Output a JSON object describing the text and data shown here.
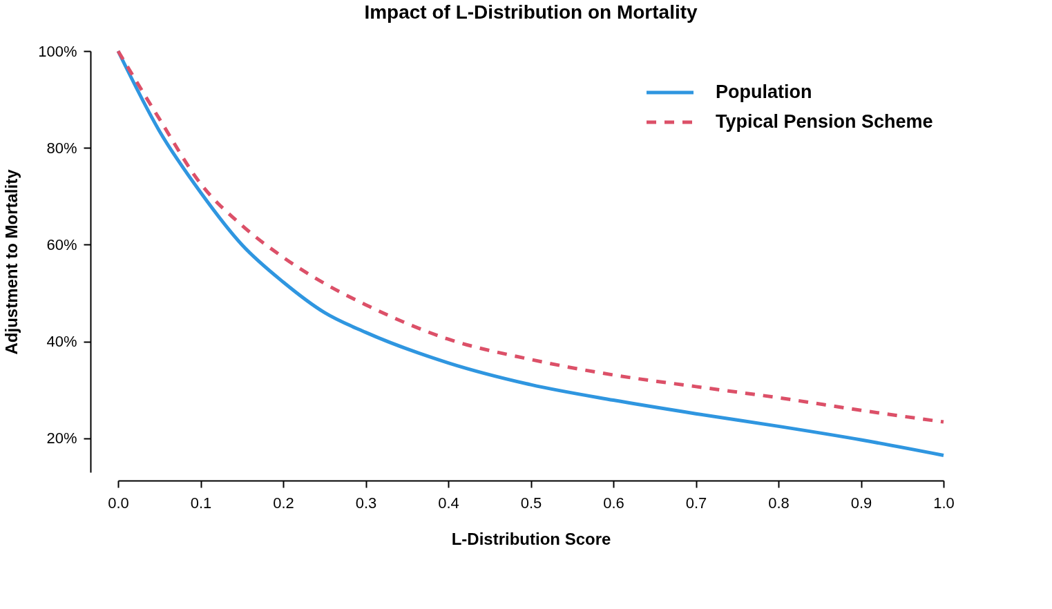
{
  "chart_data": {
    "type": "line",
    "title": "Impact of L-Distribution on Mortality",
    "xlabel": "L-Distribution Score",
    "ylabel": "Adjustment to Mortality",
    "x": [
      0,
      0.05,
      0.1,
      0.15,
      0.2,
      0.25,
      0.3,
      0.4,
      0.5,
      0.6,
      0.7,
      0.8,
      0.9,
      1.0
    ],
    "series": [
      {
        "name": "Population",
        "color": "#2f96e0",
        "line_style": "solid",
        "values": [
          100,
          83.5,
          70.8,
          60,
          52.3,
          46,
          41.9,
          35.6,
          31.1,
          27.9,
          25.1,
          22.5,
          19.7,
          16.5
        ]
      },
      {
        "name": "Typical Pension Scheme",
        "color": "#dc5068",
        "line_style": "dashed",
        "values": [
          100,
          86,
          72.6,
          64,
          57.4,
          52,
          47.6,
          40.5,
          36.3,
          33.1,
          30.7,
          28.4,
          25.8,
          23.4
        ]
      }
    ],
    "xlim": [
      0,
      1
    ],
    "xticks": [
      {
        "value": 0,
        "label": "0.0"
      },
      0.1,
      0.2,
      0.3,
      0.4,
      0.5,
      0.6,
      0.7,
      0.8,
      0.9,
      {
        "value": 1,
        "label": "1.0"
      }
    ],
    "ylim": [
      13,
      100
    ],
    "yticks": [
      {
        "value": 20,
        "label": "20%"
      },
      {
        "value": 40,
        "label": "40%"
      },
      {
        "value": 60,
        "label": "60%"
      },
      {
        "value": 80,
        "label": "80%"
      },
      {
        "value": 100,
        "label": "100%"
      }
    ],
    "grid": false,
    "legend": "top right",
    "marker": "none"
  }
}
